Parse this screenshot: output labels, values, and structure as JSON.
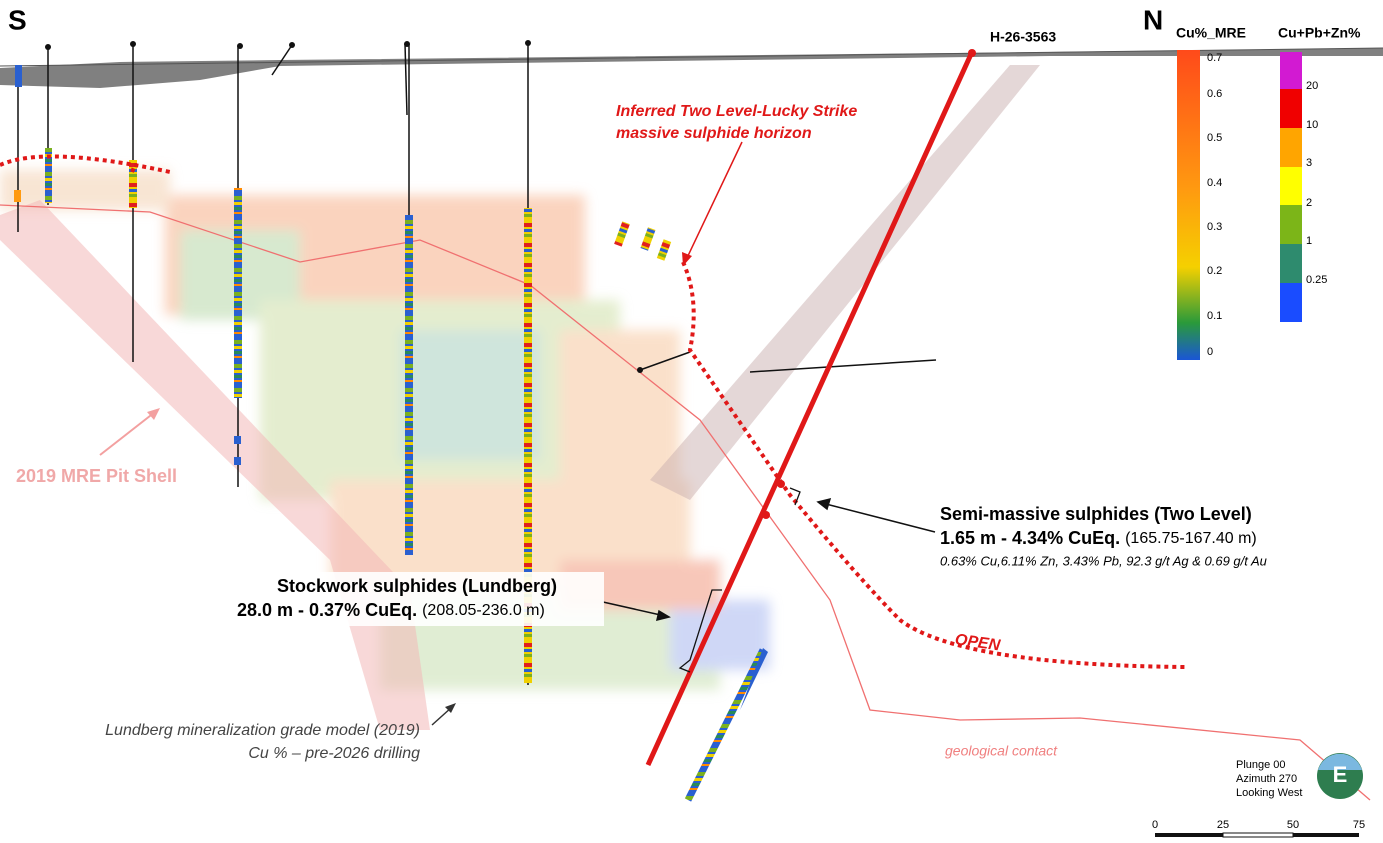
{
  "orientation": {
    "south": "S",
    "north": "N"
  },
  "hole_label": "H-26-3563",
  "annotations": {
    "inferred": [
      "Inferred Two Level-Lucky Strike",
      "massive sulphide horizon"
    ],
    "pit_shell": "2019 MRE Pit Shell",
    "semi_massive": {
      "title": "Semi-massive sulphides (Two Level)",
      "result": "1.65 m - 4.34% CuEq.",
      "interval": "(165.75-167.40 m)",
      "assays": "0.63% Cu,6.11% Zn, 3.43% Pb, 92.3 g/t Ag & 0.69 g/t Au"
    },
    "stockwork": {
      "title": "Stockwork sulphides (Lundberg)",
      "result": "28.0 m - 0.37% CuEq.",
      "interval": "(208.05-236.0 m)"
    },
    "model_note": [
      "Lundberg mineralization grade model (2019)",
      "Cu % – pre-2026 drilling"
    ],
    "open": "OPEN",
    "contact": "geological contact"
  },
  "legends": {
    "cu_mre": {
      "title": "Cu%_MRE",
      "ticks": [
        0.7,
        0.6,
        0.5,
        0.4,
        0.3,
        0.2,
        0.1,
        0
      ]
    },
    "cu_pb_zn": {
      "title": "Cu+Pb+Zn%",
      "ticks": [
        20,
        10,
        3,
        2,
        1,
        0.25
      ]
    }
  },
  "view": [
    "Plunge 00",
    "Azimuth 270",
    "Looking West"
  ],
  "compass": "E",
  "scale_bar": [
    0,
    25,
    50,
    75
  ]
}
